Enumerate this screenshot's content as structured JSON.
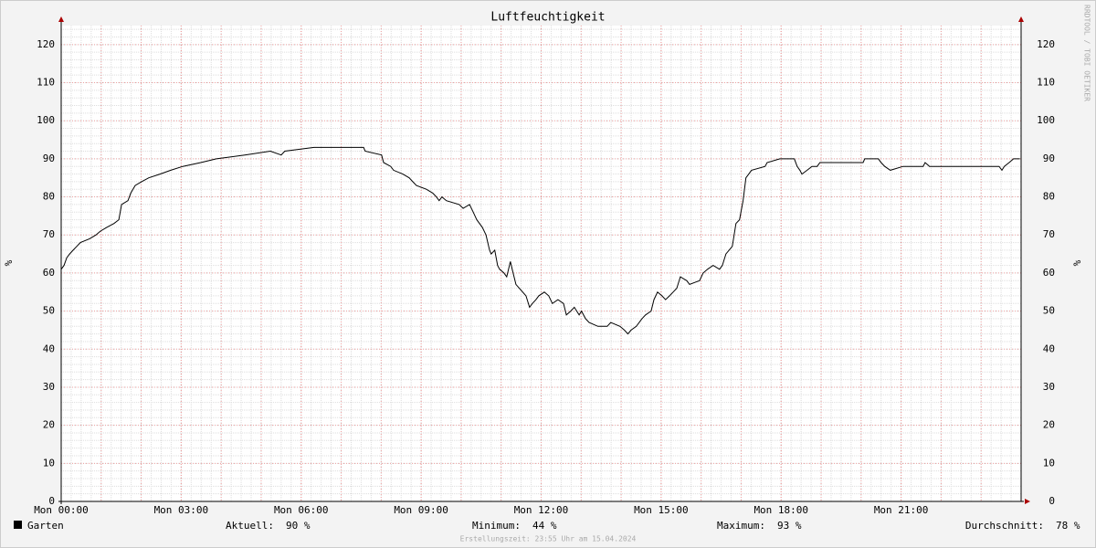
{
  "chart_data": {
    "type": "line",
    "title": "Luftfeuchtigkeit",
    "ylabel": "%",
    "watermark": "RRDTOOL / TOBI OETIKER",
    "xlim": [
      0,
      24
    ],
    "ylim": [
      0,
      125
    ],
    "grid": true,
    "xticks": [
      {
        "value": 0,
        "label": "Mon 00:00"
      },
      {
        "value": 3,
        "label": "Mon 03:00"
      },
      {
        "value": 6,
        "label": "Mon 06:00"
      },
      {
        "value": 9,
        "label": "Mon 09:00"
      },
      {
        "value": 12,
        "label": "Mon 12:00"
      },
      {
        "value": 15,
        "label": "Mon 15:00"
      },
      {
        "value": 18,
        "label": "Mon 18:00"
      },
      {
        "value": 21,
        "label": "Mon 21:00"
      }
    ],
    "yticks": [
      0,
      10,
      20,
      30,
      40,
      50,
      60,
      70,
      80,
      90,
      100,
      110,
      120
    ],
    "series": [
      {
        "name": "Garten",
        "color": "#000000",
        "x": [
          0,
          0.07,
          0.14,
          0.21,
          0.3,
          0.39,
          0.48,
          0.71,
          0.87,
          0.98,
          1.14,
          1.32,
          1.44,
          1.51,
          1.67,
          1.74,
          1.85,
          2.01,
          2.19,
          2.47,
          2.74,
          3.04,
          3.49,
          3.88,
          4.59,
          5.23,
          5.5,
          5.59,
          6.32,
          7.56,
          7.6,
          8.01,
          8.06,
          8.24,
          8.31,
          8.54,
          8.7,
          8.79,
          8.88,
          9.13,
          9.29,
          9.38,
          9.45,
          9.52,
          9.63,
          9.95,
          10.05,
          10.21,
          10.3,
          10.39,
          10.53,
          10.62,
          10.71,
          10.75,
          10.84,
          10.91,
          10.96,
          11.07,
          11.14,
          11.23,
          11.3,
          11.37,
          11.62,
          11.71,
          11.78,
          11.87,
          11.94,
          12.08,
          12.19,
          12.28,
          12.42,
          12.56,
          12.63,
          12.74,
          12.83,
          12.95,
          13.01,
          13.11,
          13.2,
          13.42,
          13.65,
          13.74,
          13.97,
          14.08,
          14.17,
          14.25,
          14.38,
          14.52,
          14.61,
          14.75,
          14.82,
          14.91,
          15.02,
          15.11,
          15.21,
          15.3,
          15.39,
          15.48,
          15.64,
          15.71,
          15.96,
          16.05,
          16.16,
          16.3,
          16.46,
          16.53,
          16.62,
          16.78,
          16.87,
          16.96,
          17.05,
          17.12,
          17.19,
          17.26,
          17.6,
          17.65,
          17.97,
          18.33,
          18.4,
          18.47,
          18.52,
          18.65,
          18.77,
          18.9,
          18.97,
          20.05,
          20.09,
          20.43,
          20.5,
          20.59,
          20.73,
          21.05,
          21.55,
          21.6,
          21.71,
          23.45,
          23.52,
          23.58,
          23.7,
          23.81,
          23.97
        ],
        "values": [
          61,
          62,
          64,
          65,
          66,
          67,
          68,
          69,
          70,
          71,
          72,
          73,
          74,
          78,
          79,
          81,
          83,
          84,
          85,
          86,
          87,
          88,
          89,
          90,
          91,
          92,
          91,
          92,
          93,
          93,
          92,
          91,
          89,
          88,
          87,
          86,
          85,
          84,
          83,
          82,
          81,
          80,
          79,
          80,
          79,
          78,
          77,
          78,
          76,
          74,
          72,
          70,
          66,
          65,
          66,
          62,
          61,
          60,
          59,
          63,
          60,
          57,
          54,
          51,
          52,
          53,
          54,
          55,
          54,
          52,
          53,
          52,
          49,
          50,
          51,
          49,
          50,
          48,
          47,
          46,
          46,
          47,
          46,
          45,
          44,
          45,
          46,
          48,
          49,
          50,
          53,
          55,
          54,
          53,
          54,
          55,
          56,
          59,
          58,
          57,
          58,
          60,
          61,
          62,
          61,
          62,
          65,
          67,
          73,
          74,
          79,
          85,
          86,
          87,
          88,
          89,
          90,
          90,
          88,
          87,
          86,
          87,
          88,
          88,
          89,
          89,
          90,
          90,
          89,
          88,
          87,
          88,
          88,
          89,
          88,
          88,
          87,
          88,
          89,
          90,
          90
        ]
      }
    ],
    "stats": [
      {
        "label": "Aktuell:",
        "text": "90 %"
      },
      {
        "label": "Minimum:",
        "text": "44 %"
      },
      {
        "label": "Maximum:",
        "text": "93 %"
      },
      {
        "label": "Durchschnitt:",
        "text": "78 %"
      }
    ],
    "footer": "Erstellungszeit: 23:55 Uhr am 15.04.2024"
  }
}
